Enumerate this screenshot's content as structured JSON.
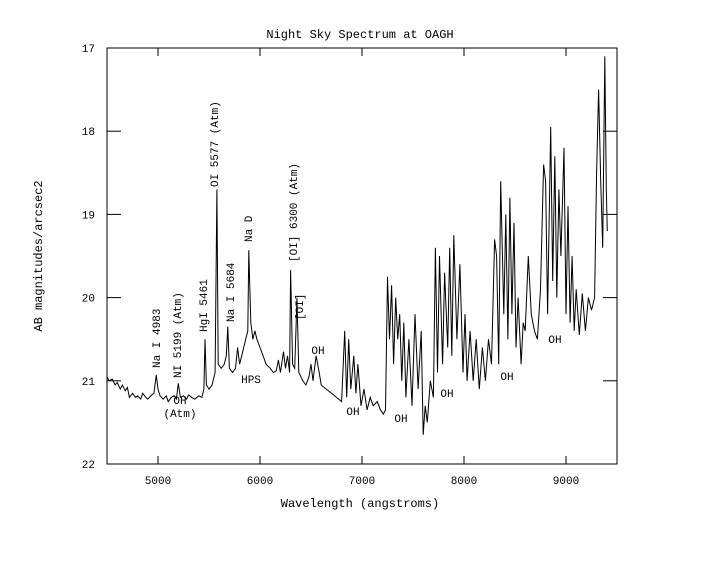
{
  "chart_data": {
    "type": "line",
    "title": "Night Sky Spectrum at OAGH",
    "x_label": "Wavelength (angstroms)",
    "y_label": "AB magnitudes/arcsec2",
    "color": "#000000",
    "xlim": [
      4500,
      9500
    ],
    "xticks": [
      5000,
      6000,
      7000,
      8000,
      9000
    ],
    "ylim": [
      22,
      17
    ],
    "yticks": [
      17,
      18,
      19,
      20,
      21,
      22
    ],
    "x": [
      4500,
      4520,
      4550,
      4580,
      4600,
      4630,
      4650,
      4680,
      4700,
      4720,
      4750,
      4780,
      4800,
      4830,
      4850,
      4880,
      4900,
      4930,
      4960,
      4983,
      5000,
      5020,
      5050,
      5080,
      5100,
      5130,
      5160,
      5180,
      5199,
      5220,
      5250,
      5280,
      5300,
      5330,
      5360,
      5400,
      5430,
      5450,
      5461,
      5475,
      5500,
      5530,
      5560,
      5577,
      5590,
      5620,
      5650,
      5670,
      5684,
      5700,
      5730,
      5760,
      5780,
      5800,
      5830,
      5860,
      5880,
      5890,
      5910,
      5930,
      5950,
      5970,
      6000,
      6030,
      6060,
      6100,
      6130,
      6160,
      6180,
      6200,
      6230,
      6250,
      6270,
      6290,
      6300,
      6320,
      6340,
      6363,
      6380,
      6420,
      6450,
      6480,
      6500,
      6520,
      6550,
      6580,
      6600,
      6650,
      6700,
      6750,
      6800,
      6830,
      6850,
      6870,
      6890,
      6920,
      6940,
      6960,
      6990,
      7020,
      7050,
      7080,
      7110,
      7150,
      7180,
      7210,
      7230,
      7250,
      7270,
      7290,
      7310,
      7330,
      7350,
      7370,
      7390,
      7410,
      7430,
      7460,
      7490,
      7520,
      7550,
      7580,
      7600,
      7620,
      7640,
      7670,
      7700,
      7720,
      7740,
      7760,
      7790,
      7810,
      7840,
      7860,
      7880,
      7900,
      7930,
      7960,
      7990,
      8010,
      8030,
      8060,
      8090,
      8120,
      8150,
      8180,
      8210,
      8240,
      8270,
      8300,
      8320,
      8340,
      8360,
      8390,
      8410,
      8430,
      8450,
      8470,
      8490,
      8510,
      8530,
      8560,
      8580,
      8600,
      8630,
      8660,
      8690,
      8720,
      8750,
      8780,
      8800,
      8820,
      8850,
      8870,
      8890,
      8910,
      8930,
      8950,
      8980,
      9000,
      9020,
      9040,
      9060,
      9080,
      9100,
      9130,
      9160,
      9190,
      9220,
      9250,
      9280,
      9300,
      9320,
      9340,
      9360,
      9380,
      9395,
      9405
    ],
    "values": [
      20.95,
      21.0,
      20.98,
      21.05,
      21.02,
      21.1,
      21.05,
      21.12,
      21.08,
      21.2,
      21.15,
      21.2,
      21.18,
      21.22,
      21.15,
      21.2,
      21.22,
      21.18,
      21.15,
      20.93,
      21.1,
      21.18,
      21.22,
      21.18,
      21.25,
      21.2,
      21.18,
      21.22,
      21.03,
      21.2,
      21.18,
      21.22,
      21.17,
      21.2,
      21.22,
      21.18,
      21.2,
      21.1,
      20.5,
      21.05,
      21.1,
      21.05,
      20.9,
      18.7,
      20.8,
      20.85,
      20.8,
      20.7,
      20.35,
      20.85,
      20.9,
      20.85,
      20.6,
      20.8,
      20.65,
      20.5,
      20.4,
      19.43,
      20.3,
      20.5,
      20.4,
      20.5,
      20.6,
      20.7,
      20.8,
      20.85,
      20.9,
      20.88,
      20.75,
      20.9,
      20.65,
      20.85,
      20.7,
      20.9,
      19.67,
      20.8,
      20.85,
      20.0,
      20.9,
      21.0,
      21.05,
      20.95,
      20.8,
      21.0,
      20.7,
      20.9,
      21.05,
      21.1,
      21.15,
      21.2,
      21.25,
      20.4,
      21.2,
      20.5,
      21.1,
      20.7,
      21.15,
      20.8,
      21.3,
      21.1,
      21.35,
      21.2,
      21.3,
      21.25,
      21.35,
      21.4,
      21.35,
      19.75,
      20.5,
      19.85,
      20.8,
      20.0,
      20.5,
      20.2,
      21.0,
      20.3,
      21.2,
      20.5,
      21.3,
      20.2,
      21.1,
      20.4,
      21.65,
      21.3,
      21.5,
      21.0,
      21.2,
      19.4,
      20.9,
      19.5,
      20.8,
      19.7,
      20.6,
      19.4,
      20.7,
      19.25,
      20.5,
      19.6,
      20.9,
      20.2,
      21.0,
      20.4,
      21.0,
      20.5,
      21.1,
      20.6,
      21.0,
      20.5,
      20.8,
      19.3,
      19.5,
      20.8,
      18.6,
      20.2,
      19.0,
      20.5,
      18.8,
      20.2,
      19.1,
      20.6,
      20.0,
      20.8,
      20.3,
      20.4,
      19.5,
      20.2,
      20.4,
      20.5,
      19.9,
      18.4,
      18.6,
      20.2,
      17.95,
      19.8,
      18.3,
      20.0,
      18.7,
      19.5,
      18.2,
      20.2,
      18.9,
      20.3,
      19.5,
      20.4,
      19.9,
      20.45,
      19.95,
      20.4,
      20.0,
      20.15,
      20.0,
      18.5,
      17.5,
      18.6,
      19.4,
      17.1,
      18.7,
      19.2
    ],
    "annotations": [
      "Na I 4983",
      "NI 5199 (Atm)",
      "HgI 5461",
      "OI 5577 (Atm)",
      "Na I 5684",
      "Na D",
      "[OI] 6300 (Atm)",
      "[OI]",
      "HPS",
      "OH",
      "OH",
      "(Atm)",
      "OH",
      "OH",
      "OH",
      "OH",
      "OH"
    ]
  }
}
